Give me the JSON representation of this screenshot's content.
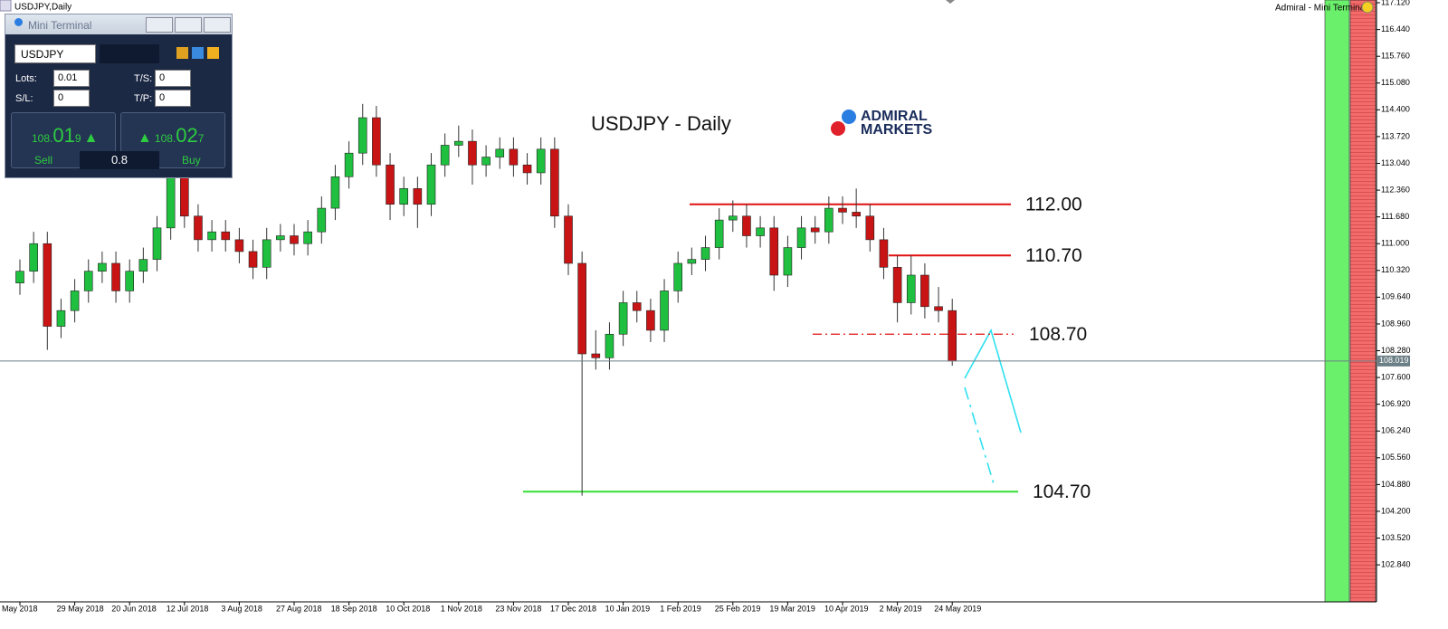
{
  "window_title": "USDJPY,Daily",
  "header_right": "Admiral - Mini Terminal",
  "logo": {
    "line1": "ADMIRAL",
    "line2": "MARKETS"
  },
  "terminal": {
    "title": "Mini Terminal",
    "symbol": "USDJPY",
    "lots_label": "Lots:",
    "lots": "0.01",
    "ts_label": "T/S:",
    "ts": "0",
    "sl_label": "S/L:",
    "sl": "0",
    "tp_label": "T/P:",
    "tp": "0",
    "sell_price": [
      "108.",
      "01",
      "9"
    ],
    "buy_price": [
      "108.",
      "02",
      "7"
    ],
    "sell": "Sell",
    "spread": "0.8",
    "buy": "Buy"
  },
  "chart_data": {
    "type": "candlestick",
    "title": "USDJPY - Daily",
    "up_color": "#1fbf3f",
    "down_color": "#c81414",
    "categories": [
      "May 2018",
      null,
      null,
      null,
      "29 May 2018",
      null,
      null,
      null,
      "20 Jun 2018",
      null,
      null,
      null,
      "12 Jul 2018",
      null,
      null,
      null,
      "3 Aug 2018",
      null,
      null,
      null,
      "27 Aug 2018",
      null,
      null,
      null,
      "18 Sep 2018",
      null,
      null,
      null,
      "10 Oct 2018",
      null,
      null,
      null,
      "1 Nov 2018",
      null,
      null,
      null,
      "23 Nov 2018",
      null,
      null,
      null,
      "17 Dec 2018",
      null,
      null,
      null,
      "10 Jan 2019",
      null,
      null,
      null,
      "1 Feb 2019",
      null,
      null,
      null,
      "25 Feb 2019",
      null,
      null,
      null,
      "19 Mar 2019",
      null,
      null,
      null,
      "10 Apr 2019",
      null,
      null,
      null,
      "2 May 2019",
      null,
      null,
      null,
      "24 May 2019"
    ],
    "open": [
      110.0,
      110.3,
      111.0,
      108.9,
      109.3,
      109.8,
      110.3,
      110.5,
      109.8,
      110.3,
      110.6,
      111.4,
      112.7,
      111.7,
      111.1,
      111.3,
      111.1,
      110.8,
      110.4,
      111.1,
      111.2,
      111.0,
      111.3,
      111.9,
      112.7,
      113.3,
      114.2,
      113.0,
      112.0,
      112.4,
      112.0,
      113.0,
      113.5,
      113.6,
      113.0,
      113.2,
      113.4,
      113.0,
      112.8,
      113.4,
      111.7,
      110.5,
      108.2,
      108.1,
      108.7,
      109.5,
      109.3,
      108.8,
      109.8,
      110.5,
      110.6,
      110.9,
      111.6,
      111.7,
      111.2,
      111.4,
      110.2,
      110.9,
      111.4,
      111.3,
      111.9,
      111.8,
      111.7,
      111.1,
      110.4,
      109.5,
      110.2,
      109.4,
      109.3
    ],
    "high": [
      110.6,
      111.3,
      111.3,
      109.6,
      110.1,
      110.6,
      110.8,
      110.8,
      110.6,
      110.9,
      111.7,
      113.0,
      113.0,
      112.0,
      111.6,
      111.6,
      111.4,
      111.1,
      111.4,
      111.5,
      111.5,
      111.6,
      112.2,
      113.0,
      113.6,
      114.55,
      114.5,
      113.3,
      112.7,
      112.7,
      113.3,
      113.8,
      114.0,
      113.9,
      113.5,
      113.7,
      113.7,
      113.3,
      113.7,
      113.7,
      112.0,
      110.8,
      108.8,
      109.0,
      109.8,
      109.8,
      109.6,
      110.1,
      110.8,
      110.9,
      111.2,
      111.9,
      112.1,
      112.0,
      111.7,
      111.7,
      111.2,
      111.7,
      111.7,
      112.2,
      112.2,
      112.4,
      112.0,
      111.4,
      110.7,
      110.7,
      110.5,
      109.9,
      109.6
    ],
    "low": [
      109.7,
      110.0,
      108.3,
      108.6,
      109.0,
      109.5,
      110.0,
      109.5,
      109.5,
      110.0,
      110.3,
      111.1,
      111.4,
      110.8,
      110.8,
      110.8,
      110.5,
      110.1,
      110.1,
      110.8,
      110.7,
      110.7,
      111.0,
      111.6,
      112.4,
      113.0,
      112.7,
      111.6,
      111.7,
      111.4,
      111.7,
      112.7,
      113.2,
      112.5,
      112.7,
      112.9,
      112.7,
      112.5,
      112.5,
      111.4,
      110.2,
      104.6,
      107.8,
      107.8,
      108.4,
      109.0,
      108.5,
      108.5,
      109.5,
      110.2,
      110.3,
      110.6,
      111.3,
      110.9,
      110.9,
      109.8,
      109.9,
      110.6,
      111.0,
      111.0,
      111.5,
      111.4,
      110.8,
      110.1,
      109.0,
      109.2,
      109.1,
      109.0,
      107.9
    ],
    "close": [
      110.3,
      111.0,
      108.9,
      109.3,
      109.8,
      110.3,
      110.5,
      109.8,
      110.3,
      110.6,
      111.4,
      112.7,
      111.7,
      111.1,
      111.3,
      111.1,
      110.8,
      110.4,
      111.1,
      111.2,
      111.0,
      111.3,
      111.9,
      112.7,
      113.3,
      114.2,
      113.0,
      112.0,
      112.4,
      112.0,
      113.0,
      113.5,
      113.6,
      113.0,
      113.2,
      113.4,
      113.0,
      112.8,
      113.4,
      111.7,
      110.5,
      108.2,
      108.1,
      108.7,
      109.5,
      109.3,
      108.8,
      109.8,
      110.5,
      110.6,
      110.9,
      111.6,
      111.7,
      111.2,
      111.4,
      110.2,
      110.9,
      111.4,
      111.3,
      111.9,
      111.8,
      111.7,
      111.1,
      110.4,
      109.5,
      110.2,
      109.4,
      109.3,
      108.02
    ],
    "ylim": [
      101.9,
      117.19
    ],
    "yticks": [
      {
        "value": 117.12,
        "label": "117.120"
      },
      {
        "value": 116.44,
        "label": "116.440"
      },
      {
        "value": 115.76,
        "label": "115.760"
      },
      {
        "value": 115.08,
        "label": "115.080"
      },
      {
        "value": 114.4,
        "label": "114.400"
      },
      {
        "value": 113.72,
        "label": "113.720"
      },
      {
        "value": 113.04,
        "label": "113.040"
      },
      {
        "value": 112.36,
        "label": "112.360"
      },
      {
        "value": 111.68,
        "label": "111.680"
      },
      {
        "value": 111.0,
        "label": "111.000"
      },
      {
        "value": 110.32,
        "label": "110.320"
      },
      {
        "value": 109.64,
        "label": "109.640"
      },
      {
        "value": 108.96,
        "label": "108.960"
      },
      {
        "value": 108.28,
        "label": "108.280"
      },
      {
        "value": 107.6,
        "label": "107.600"
      },
      {
        "value": 106.92,
        "label": "106.920"
      },
      {
        "value": 106.24,
        "label": "106.240"
      },
      {
        "value": 105.56,
        "label": "105.560"
      },
      {
        "value": 104.88,
        "label": "104.880"
      },
      {
        "value": 104.2,
        "label": "104.200"
      },
      {
        "value": 103.52,
        "label": "103.520"
      },
      {
        "value": 102.84,
        "label": "102.840"
      }
    ],
    "current_price": {
      "value": 108.019,
      "label": "108.019"
    },
    "levels": [
      {
        "value": 112.0,
        "label": "112.00",
        "color": "#e01010",
        "style": "solid"
      },
      {
        "value": 110.7,
        "label": "110.70",
        "color": "#e01010",
        "style": "solid"
      },
      {
        "value": 108.7,
        "label": "108.70",
        "color": "#e01010",
        "style": "dashdot"
      },
      {
        "value": 104.7,
        "label": "104.70",
        "color": "#33e033",
        "style": "solid"
      }
    ]
  }
}
